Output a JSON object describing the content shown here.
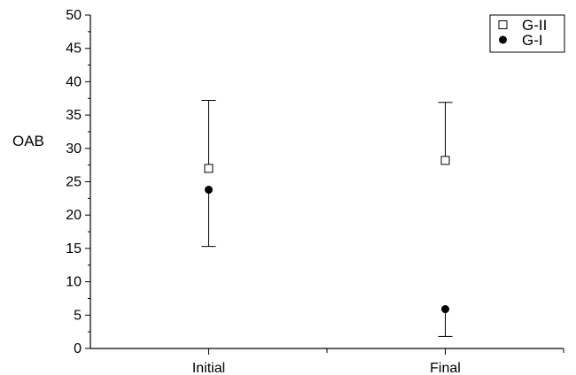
{
  "chart_data": {
    "type": "scatter",
    "ylabel": "OAB",
    "xlabel": "",
    "categories": [
      "Initial",
      "Final"
    ],
    "ylim": [
      0,
      50
    ],
    "yticks": [
      0,
      5,
      10,
      15,
      20,
      25,
      30,
      35,
      40,
      45,
      50
    ],
    "grid": false,
    "legend_position": "top-right",
    "series": [
      {
        "name": "G-II",
        "marker": "open-square",
        "values": [
          27.0,
          28.2
        ],
        "error_bar_upper": [
          37.2,
          36.9
        ],
        "error_bar_lower": [
          null,
          null
        ]
      },
      {
        "name": "G-I",
        "marker": "filled-circle",
        "values": [
          23.8,
          5.9
        ],
        "error_bar_upper": [
          null,
          null
        ],
        "error_bar_lower": [
          15.3,
          1.8
        ]
      }
    ]
  }
}
